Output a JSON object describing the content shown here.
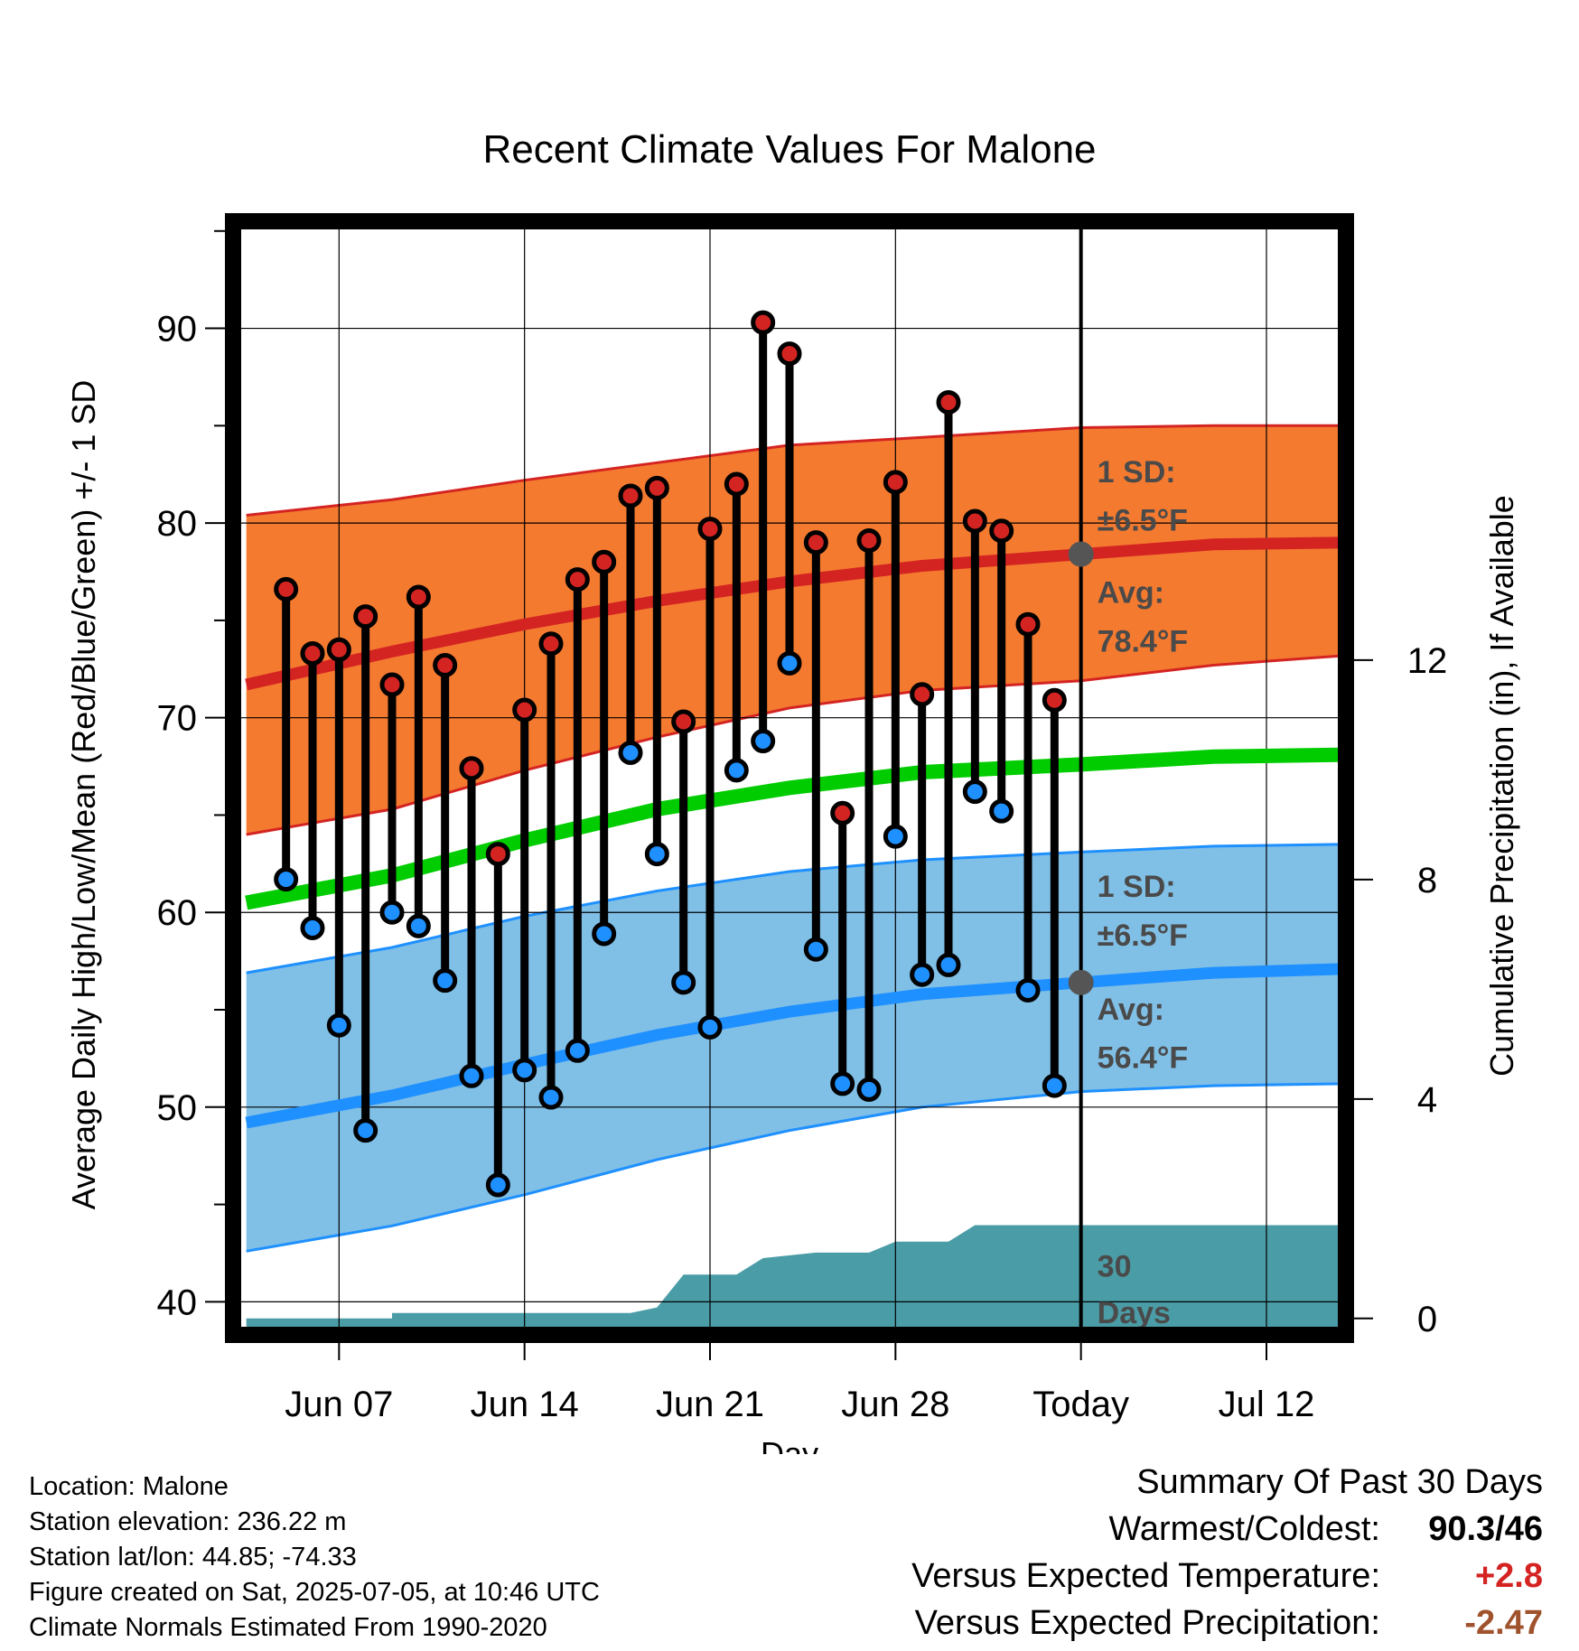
{
  "chart_data": {
    "type": "line",
    "title": "Recent Climate Values For Malone",
    "xlabel": "Day",
    "ylabel": "Average Daily High/Low/Mean (Red/Blue/Green) +/- 1 SD",
    "y2label": "Cumulative Precipitation (in), If Available",
    "ylim": [
      38.3,
      95.5
    ],
    "y2lim": [
      -0.3,
      20
    ],
    "xlim": [
      -2,
      40
    ],
    "x_ticks": [
      {
        "pos": 2,
        "label": "Jun 07"
      },
      {
        "pos": 9,
        "label": "Jun 14"
      },
      {
        "pos": 16,
        "label": "Jun 21"
      },
      {
        "pos": 23,
        "label": "Jun 28"
      },
      {
        "pos": 30,
        "label": "Today"
      },
      {
        "pos": 37,
        "label": "Jul 12"
      }
    ],
    "y_ticks": [
      40,
      50,
      60,
      70,
      80,
      90
    ],
    "y2_ticks": [
      0,
      4,
      8,
      12
    ],
    "grid": true,
    "today_pos": 30,
    "normals": {
      "x": [
        -1.5,
        4,
        9,
        14,
        19,
        24,
        30,
        35,
        40
      ],
      "high_avg": [
        71.7,
        73.4,
        74.8,
        76.0,
        77.0,
        77.8,
        78.4,
        78.9,
        79.0
      ],
      "high_upper": [
        80.4,
        81.2,
        82.2,
        83.1,
        84.0,
        84.4,
        84.9,
        85.0,
        85.0
      ],
      "high_lower": [
        64.0,
        65.3,
        67.3,
        69.0,
        70.5,
        71.4,
        71.9,
        72.7,
        73.2
      ],
      "mean_avg": [
        60.5,
        61.9,
        63.7,
        65.3,
        66.4,
        67.2,
        67.6,
        68.0,
        68.1
      ],
      "low_avg": [
        49.2,
        50.6,
        52.2,
        53.7,
        54.9,
        55.8,
        56.4,
        56.9,
        57.1
      ],
      "low_upper": [
        56.9,
        58.2,
        59.8,
        61.1,
        62.1,
        62.7,
        63.1,
        63.4,
        63.5
      ],
      "low_lower": [
        42.6,
        43.9,
        45.5,
        47.3,
        48.8,
        50.0,
        50.8,
        51.1,
        51.2
      ]
    },
    "highs": [
      76.6,
      73.3,
      73.5,
      75.2,
      71.7,
      76.2,
      72.7,
      67.4,
      63.0,
      70.4,
      73.8,
      77.1,
      78.0,
      81.4,
      81.8,
      69.8,
      79.7,
      82.0,
      90.3,
      88.7,
      79.0,
      65.1,
      79.1,
      82.1,
      71.2,
      86.2,
      80.1,
      79.6,
      74.8,
      70.9
    ],
    "lows": [
      61.7,
      59.2,
      54.2,
      48.8,
      60.0,
      59.3,
      56.5,
      51.6,
      46.0,
      51.9,
      50.5,
      52.9,
      58.9,
      68.2,
      63.0,
      56.4,
      54.1,
      67.3,
      68.8,
      72.8,
      58.1,
      51.2,
      50.9,
      63.9,
      56.8,
      57.3,
      66.2,
      65.2,
      56.0,
      51.1
    ],
    "precip": {
      "x": [
        -1.5,
        4,
        4,
        13,
        14,
        15,
        17,
        18,
        20,
        22,
        23,
        25,
        26,
        29,
        30,
        40
      ],
      "values": [
        0,
        0,
        0.1,
        0.1,
        0.2,
        0.8,
        0.8,
        1.1,
        1.2,
        1.2,
        1.4,
        1.4,
        1.7,
        1.7,
        1.7,
        1.7
      ]
    },
    "annotations": {
      "high_sd": "1 SD:",
      "high_sd_val": "±6.5°F",
      "high_avg_label": "Avg:",
      "high_avg_val": "78.4°F",
      "low_sd": "1 SD:",
      "low_sd_val": "±6.5°F",
      "low_avg_label": "Avg:",
      "low_avg_val": "56.4°F",
      "precip_label_1": "30",
      "precip_label_2": "Days"
    },
    "colors": {
      "high_band": "#f47a30",
      "high_line": "#d42422",
      "mean_line": "#00cc00",
      "low_band": "#80bfe6",
      "low_line": "#1e90ff",
      "precip": "#4a9ca6",
      "high_dot": "#d42422",
      "low_dot": "#1e90ff"
    }
  },
  "info": {
    "location": "Location: Malone",
    "elevation": "Station elevation: 236.22 m",
    "latlon": "Station lat/lon: 44.85; -74.33",
    "created": "Figure created on Sat, 2025-07-05, at 10:46 UTC",
    "normals": "Climate Normals Estimated From 1990-2020"
  },
  "summary": {
    "heading": "Summary Of Past 30 Days",
    "warm_cold_label": "Warmest/Coldest:",
    "warm_cold_value": "90.3/46",
    "temp_label": "Versus Expected Temperature:",
    "temp_value": "+2.8",
    "temp_color": "#d42422",
    "precip_label": "Versus Expected Precipitation:",
    "precip_value": "-2.47",
    "precip_color": "#a0522d"
  }
}
